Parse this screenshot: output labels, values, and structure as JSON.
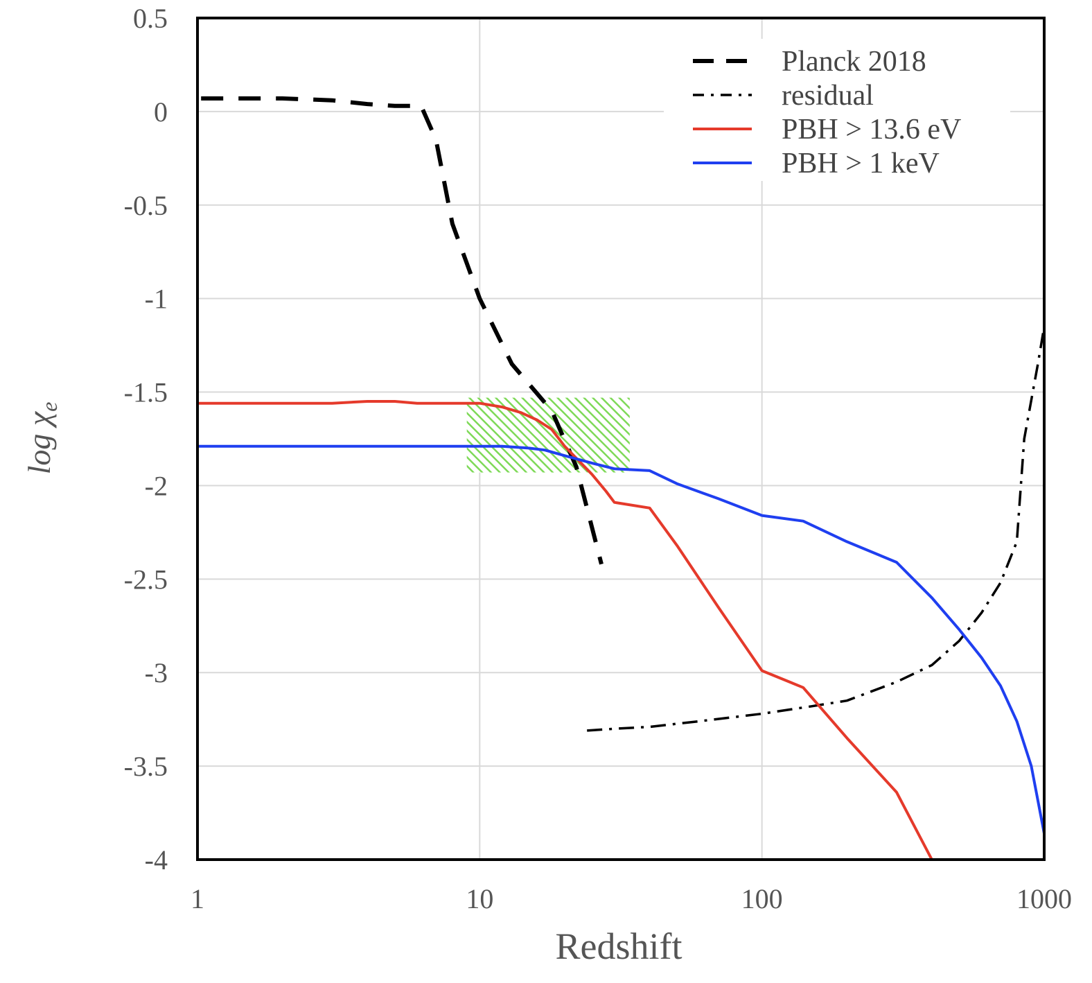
{
  "chart_data": {
    "type": "line",
    "title": "",
    "xlabel": "Redshift",
    "ylabel": "log χe",
    "ylabel_main": "log χ",
    "ylabel_sub": "e",
    "xscale": "log",
    "xlim": [
      1,
      1000
    ],
    "ylim": [
      -4,
      0.5
    ],
    "grid": true,
    "legend_position": "top-right",
    "x_ticks": [
      "1",
      "10",
      "100",
      "1000"
    ],
    "y_ticks": [
      "0.5",
      "0",
      "-0.5",
      "-1",
      "-1.5",
      "-2",
      "-2.5",
      "-3",
      "-3.5",
      "-4"
    ],
    "series": [
      {
        "name": "Planck 2018",
        "color": "#000000",
        "style": "dashed",
        "points": [
          [
            1.03,
            0.07
          ],
          [
            2,
            0.07
          ],
          [
            3,
            0.06
          ],
          [
            4,
            0.04
          ],
          [
            5,
            0.03
          ],
          [
            6.2,
            0.03
          ],
          [
            7,
            -0.15
          ],
          [
            8,
            -0.6
          ],
          [
            10,
            -1.0
          ],
          [
            13,
            -1.35
          ],
          [
            18,
            -1.6
          ],
          [
            22,
            -1.9
          ],
          [
            27,
            -2.42
          ]
        ]
      },
      {
        "name": "residual",
        "color": "#000000",
        "style": "dash-dot",
        "points": [
          [
            24,
            -3.31
          ],
          [
            30,
            -3.3
          ],
          [
            40,
            -3.29
          ],
          [
            60,
            -3.26
          ],
          [
            100,
            -3.22
          ],
          [
            150,
            -3.18
          ],
          [
            200,
            -3.15
          ],
          [
            300,
            -3.05
          ],
          [
            400,
            -2.96
          ],
          [
            500,
            -2.83
          ],
          [
            600,
            -2.68
          ],
          [
            700,
            -2.52
          ],
          [
            800,
            -2.3
          ],
          [
            850,
            -1.75
          ],
          [
            950,
            -1.35
          ],
          [
            1000,
            -1.15
          ]
        ]
      },
      {
        "name": "PBH > 13.6 eV",
        "color": "#e53a2b",
        "style": "solid",
        "points": [
          [
            1,
            -1.56
          ],
          [
            2,
            -1.56
          ],
          [
            3,
            -1.56
          ],
          [
            4,
            -1.55
          ],
          [
            5,
            -1.55
          ],
          [
            6,
            -1.56
          ],
          [
            8,
            -1.56
          ],
          [
            10,
            -1.56
          ],
          [
            12,
            -1.58
          ],
          [
            14,
            -1.61
          ],
          [
            16,
            -1.65
          ],
          [
            18,
            -1.7
          ],
          [
            20,
            -1.79
          ],
          [
            25,
            -1.94
          ],
          [
            28,
            -2.03
          ],
          [
            30,
            -2.09
          ],
          [
            40,
            -2.12
          ],
          [
            50,
            -2.32
          ],
          [
            70,
            -2.65
          ],
          [
            100,
            -2.99
          ],
          [
            140,
            -3.08
          ],
          [
            200,
            -3.35
          ],
          [
            300,
            -3.64
          ],
          [
            400,
            -4.0
          ]
        ]
      },
      {
        "name": "PBH > 1 keV",
        "color": "#1f3ff0",
        "style": "solid",
        "points": [
          [
            1,
            -1.79
          ],
          [
            2,
            -1.79
          ],
          [
            5,
            -1.79
          ],
          [
            10,
            -1.79
          ],
          [
            12,
            -1.79
          ],
          [
            15,
            -1.8
          ],
          [
            17,
            -1.81
          ],
          [
            20,
            -1.84
          ],
          [
            25,
            -1.88
          ],
          [
            30,
            -1.91
          ],
          [
            40,
            -1.92
          ],
          [
            50,
            -1.99
          ],
          [
            70,
            -2.07
          ],
          [
            100,
            -2.16
          ],
          [
            140,
            -2.19
          ],
          [
            200,
            -2.3
          ],
          [
            300,
            -2.41
          ],
          [
            400,
            -2.6
          ],
          [
            500,
            -2.77
          ],
          [
            600,
            -2.92
          ],
          [
            700,
            -3.07
          ],
          [
            800,
            -3.26
          ],
          [
            900,
            -3.5
          ],
          [
            1000,
            -3.86
          ]
        ]
      }
    ],
    "annotations": [
      {
        "kind": "hatched-region",
        "color": "#7ed957",
        "x_range": [
          9,
          34
        ],
        "y_range": [
          -1.93,
          -1.53
        ]
      }
    ]
  }
}
